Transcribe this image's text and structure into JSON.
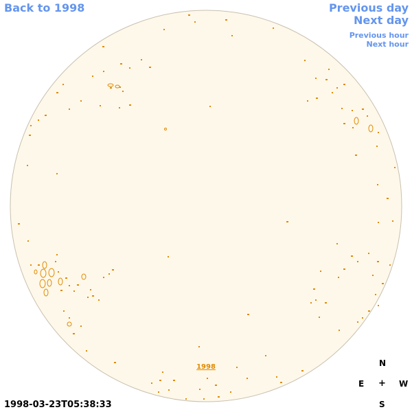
{
  "nav": {
    "back_label": "Back to 1998",
    "prev_day_label": "Previous day",
    "next_day_label": "Next day",
    "prev_hour_label": "Previous hour",
    "next_hour_label": "Next hour"
  },
  "map": {
    "year_link": "1998",
    "timestamp": "1998-03-23T05:38:33"
  },
  "compass": {
    "north": "N",
    "east": "E",
    "center": "+",
    "west": "W",
    "south": "S"
  },
  "colors": {
    "link": "#6495ed",
    "disk_fill": "#fef8ea",
    "disk_outline": "#c8c0b0",
    "contour": "#e08a00"
  }
}
